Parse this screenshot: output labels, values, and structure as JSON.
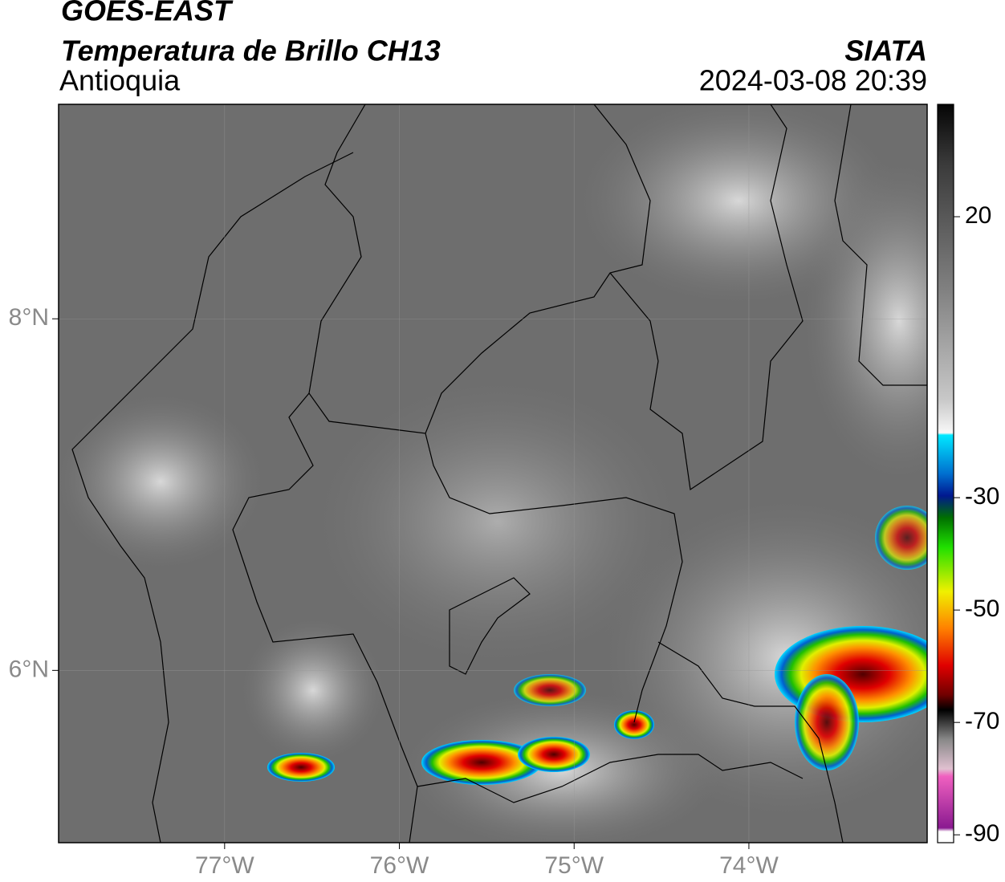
{
  "header": {
    "title": "GOES-EAST",
    "subtitle": "Temperatura de Brillo CH13",
    "region": "Antioquia",
    "source": "SIATA",
    "datetime": "2024-03-08 20:39"
  },
  "map": {
    "xlim": [
      -77.95,
      -72.98
    ],
    "ylim": [
      5.02,
      9.22
    ],
    "xticks": [
      {
        "value": -77,
        "label": "77°W"
      },
      {
        "value": -76,
        "label": "76°W"
      },
      {
        "value": -75,
        "label": "75°W"
      },
      {
        "value": -74,
        "label": "74°W"
      }
    ],
    "yticks": [
      {
        "value": 6,
        "label": "6°N"
      },
      {
        "value": 8,
        "label": "8°N"
      }
    ],
    "grid": true
  },
  "colorbar": {
    "ylim": [
      -91.4,
      40
    ],
    "yticks": [
      20,
      -30,
      -50,
      -70,
      -90
    ]
  }
}
